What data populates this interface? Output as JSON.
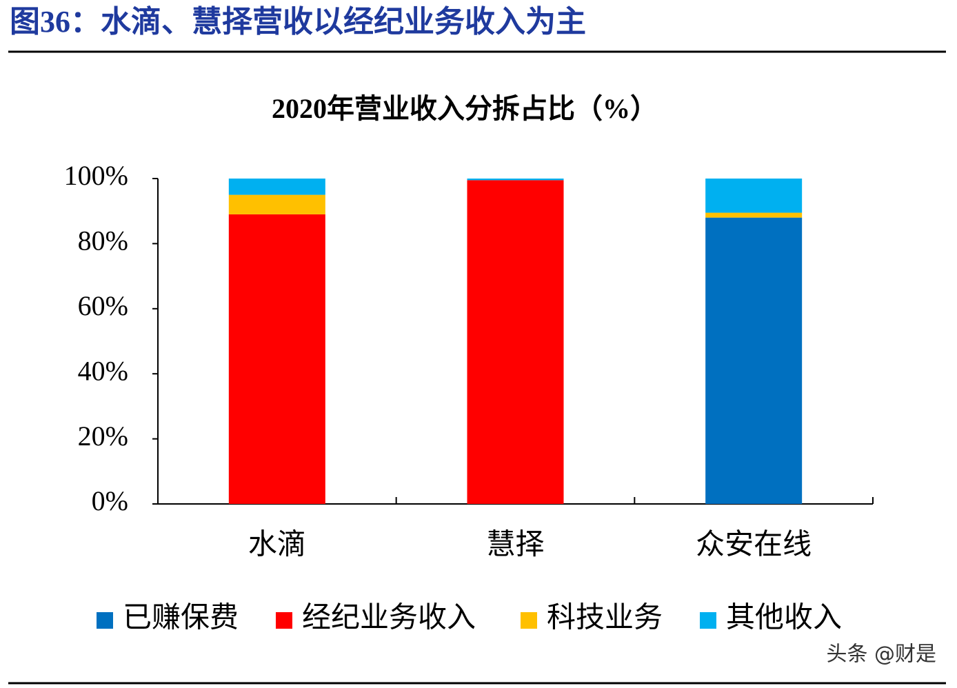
{
  "header": {
    "title": "图36：水滴、慧择营收以经纪业务收入为主"
  },
  "watermark": "头条 @财是",
  "chart_data": {
    "type": "stacked_bar",
    "title": "2020年营业收入分拆占比（%）",
    "categories": [
      "水滴",
      "慧择",
      "众安在线"
    ],
    "series": [
      {
        "name": "已赚保费",
        "color": "#0070c0",
        "values": [
          0,
          0,
          88
        ]
      },
      {
        "name": "经纪业务收入",
        "color": "#ff0000",
        "values": [
          89,
          99.5,
          0
        ]
      },
      {
        "name": "科技业务",
        "color": "#ffc000",
        "values": [
          6,
          0,
          1.5
        ]
      },
      {
        "name": "其他收入",
        "color": "#00b0f0",
        "values": [
          5,
          0.5,
          10.5
        ]
      }
    ],
    "ylim": [
      0,
      100
    ],
    "yticks": [
      {
        "value": 0,
        "label": "0%"
      },
      {
        "value": 20,
        "label": "20%"
      },
      {
        "value": 40,
        "label": "40%"
      },
      {
        "value": 60,
        "label": "60%"
      },
      {
        "value": 80,
        "label": "80%"
      },
      {
        "value": 100,
        "label": "100%"
      }
    ],
    "legend": "bottom"
  }
}
